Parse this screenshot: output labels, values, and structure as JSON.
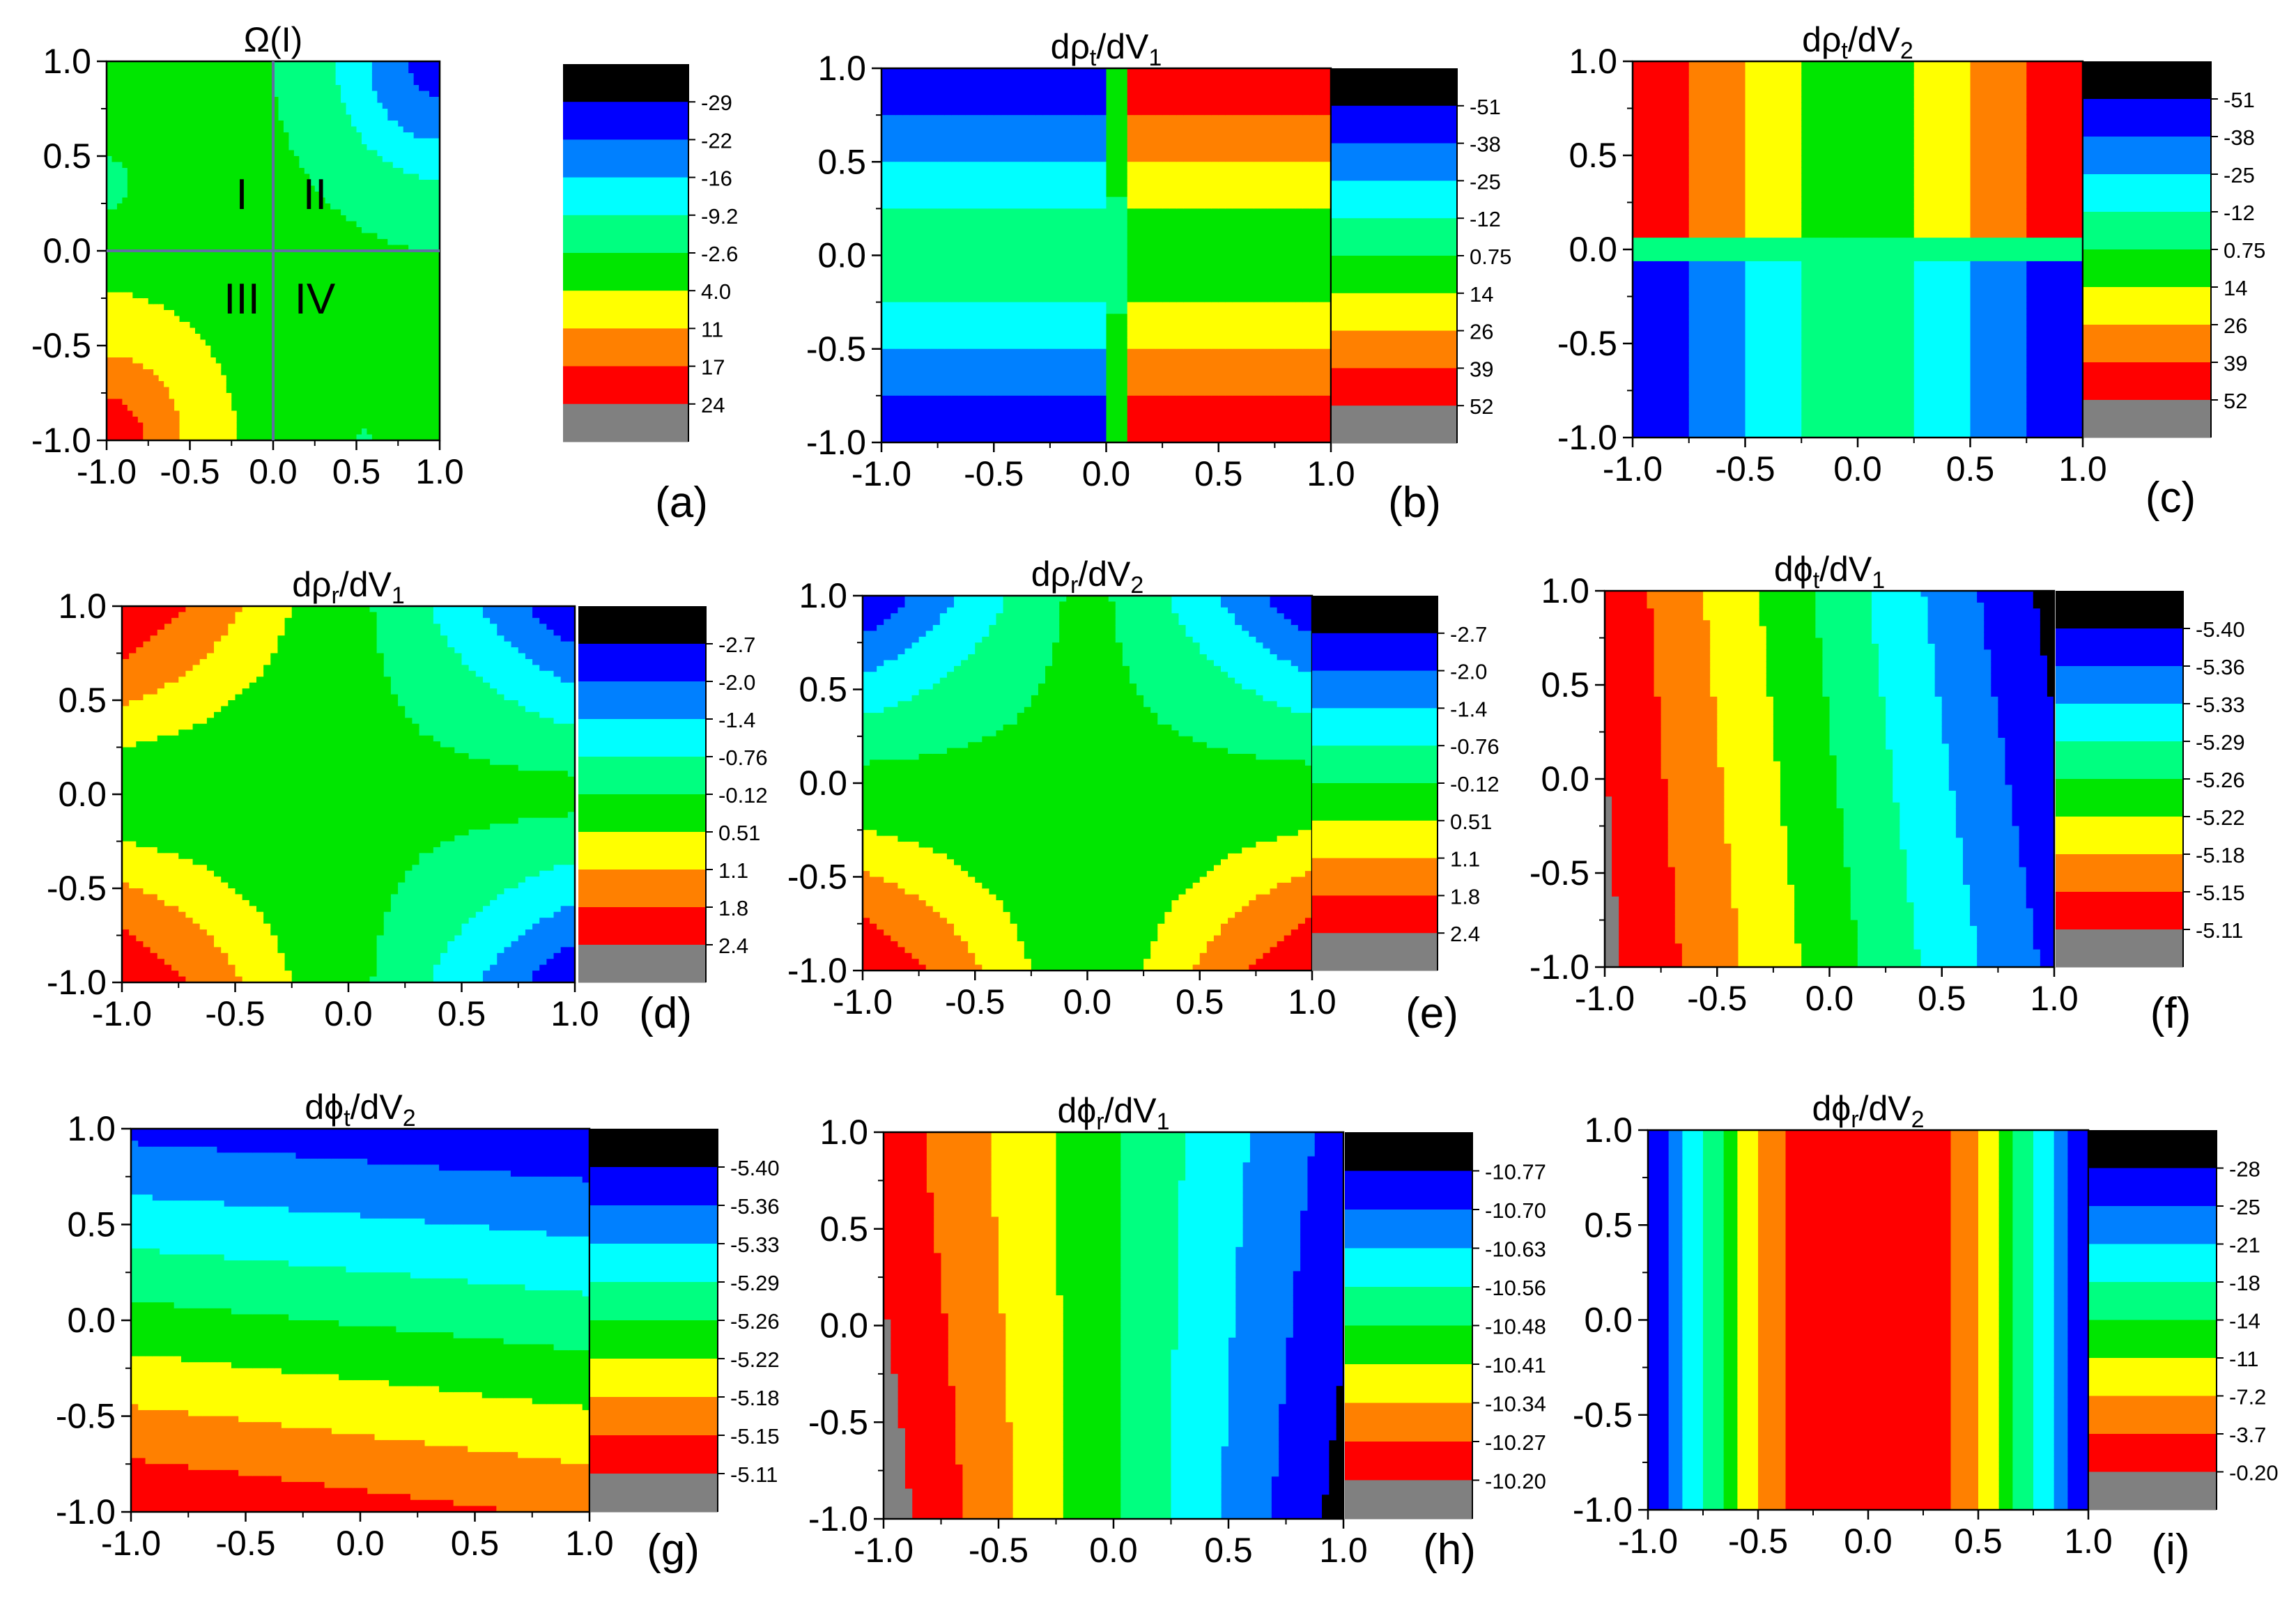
{
  "colors": [
    "#808080",
    "#ff0000",
    "#ff8000",
    "#ffff00",
    "#00e600",
    "#00ff80",
    "#00ffff",
    "#0080ff",
    "#0000ff",
    "#000000"
  ],
  "chart_data": [
    {
      "panel": "(a)",
      "type": "heatmap",
      "title": {
        "main": "Ω(I)",
        "sub": "",
        "main2": ""
      },
      "xlim": [
        -1,
        1
      ],
      "ylim": [
        -1,
        1
      ],
      "xticks": [
        "-1.0",
        "-0.5",
        "0.0",
        "0.5",
        "1.0"
      ],
      "yticks": [
        "-1.0",
        "-0.5",
        "0.0",
        "0.5",
        "1.0"
      ],
      "colorbar": [
        "-29",
        "-22",
        "-16",
        "-9.2",
        "-2.6",
        "4.0",
        "11",
        "17",
        "24"
      ],
      "field": "radial_corners",
      "quadrants": [
        "I",
        "II",
        "III",
        "IV"
      ]
    },
    {
      "panel": "(b)",
      "type": "heatmap",
      "title": {
        "main": "dρ",
        "sub": "t",
        "main2": "/dV",
        "sub2": "1"
      },
      "xlim": [
        -1,
        1
      ],
      "ylim": [
        -1,
        1
      ],
      "xticks": [
        "-1.0",
        "-0.5",
        "0.0",
        "0.5",
        "1.0"
      ],
      "yticks": [
        "-1.0",
        "-0.5",
        "0.0",
        "0.5",
        "1.0"
      ],
      "colorbar": [
        "-51",
        "-38",
        "-25",
        "-12",
        "0.75",
        "14",
        "26",
        "39",
        "52"
      ],
      "field": "sign_x_times_y"
    },
    {
      "panel": "(c)",
      "type": "heatmap",
      "title": {
        "main": "dρ",
        "sub": "t",
        "main2": "/dV",
        "sub2": "2"
      },
      "xlim": [
        -1,
        1
      ],
      "ylim": [
        -1,
        1
      ],
      "xticks": [
        "-1.0",
        "-0.5",
        "0.0",
        "0.5",
        "1.0"
      ],
      "yticks": [
        "-1.0",
        "-0.5",
        "0.0",
        "0.5",
        "1.0"
      ],
      "colorbar": [
        "-51",
        "-38",
        "-25",
        "-12",
        "0.75",
        "14",
        "26",
        "39",
        "52"
      ],
      "field": "abs_x_times_sign_y"
    },
    {
      "panel": "(d)",
      "type": "heatmap",
      "title": {
        "main": "dρ",
        "sub": "r",
        "main2": "/dV",
        "sub2": "1"
      },
      "xlim": [
        -1,
        1
      ],
      "ylim": [
        -1,
        1
      ],
      "xticks": [
        "-1.0",
        "-0.5",
        "0.0",
        "0.5",
        "1.0"
      ],
      "yticks": [
        "-1.0",
        "-0.5",
        "0.0",
        "0.5",
        "1.0"
      ],
      "colorbar": [
        "-2.7",
        "-2.0",
        "-1.4",
        "-0.76",
        "-0.12",
        "0.51",
        "1.1",
        "1.8",
        "2.4"
      ],
      "field": "saddle_left_hot"
    },
    {
      "panel": "(e)",
      "type": "heatmap",
      "title": {
        "main": "dρ",
        "sub": "r",
        "main2": "/dV",
        "sub2": "2"
      },
      "xlim": [
        -1,
        1
      ],
      "ylim": [
        -1,
        1
      ],
      "xticks": [
        "-1.0",
        "-0.5",
        "0.0",
        "0.5",
        "1.0"
      ],
      "yticks": [
        "-1.0",
        "-0.5",
        "0.0",
        "0.5",
        "1.0"
      ],
      "colorbar": [
        "-2.7",
        "-2.0",
        "-1.4",
        "-0.76",
        "-0.12",
        "0.51",
        "1.1",
        "1.8",
        "2.4"
      ],
      "field": "saddle_bottom_hot"
    },
    {
      "panel": "(f)",
      "type": "heatmap",
      "title": {
        "main": "dϕ",
        "sub": "t",
        "main2": "/dV",
        "sub2": "1"
      },
      "xlim": [
        -1,
        1
      ],
      "ylim": [
        -1,
        1
      ],
      "xticks": [
        "-1.0",
        "-0.5",
        "0.0",
        "0.5",
        "1.0"
      ],
      "yticks": [
        "-1.0",
        "-0.5",
        "0.0",
        "0.5",
        "1.0"
      ],
      "colorbar": [
        "-5.40",
        "-5.36",
        "-5.33",
        "-5.29",
        "-5.26",
        "-5.22",
        "-5.18",
        "-5.15",
        "-5.11"
      ],
      "field": "vertical_bands_curved"
    },
    {
      "panel": "(g)",
      "type": "heatmap",
      "title": {
        "main": "dϕ",
        "sub": "t",
        "main2": "/dV",
        "sub2": "2"
      },
      "xlim": [
        -1,
        1
      ],
      "ylim": [
        -1,
        1
      ],
      "xticks": [
        "-1.0",
        "-0.5",
        "0.0",
        "0.5",
        "1.0"
      ],
      "yticks": [
        "-1.0",
        "-0.5",
        "0.0",
        "0.5",
        "1.0"
      ],
      "colorbar": [
        "-5.40",
        "-5.36",
        "-5.33",
        "-5.29",
        "-5.26",
        "-5.22",
        "-5.18",
        "-5.15",
        "-5.11"
      ],
      "field": "horizontal_bands_curved"
    },
    {
      "panel": "(h)",
      "type": "heatmap",
      "title": {
        "main": "dϕ",
        "sub": "r",
        "main2": "/dV",
        "sub2": "1"
      },
      "xlim": [
        -1,
        1
      ],
      "ylim": [
        -1,
        1
      ],
      "xticks": [
        "-1.0",
        "-0.5",
        "0.0",
        "0.5",
        "1.0"
      ],
      "yticks": [
        "-1.0",
        "-0.5",
        "0.0",
        "0.5",
        "1.0"
      ],
      "colorbar": [
        "-10.77",
        "-10.70",
        "-10.63",
        "-10.56",
        "-10.48",
        "-10.41",
        "-10.34",
        "-10.27",
        "-10.20"
      ],
      "field": "vertical_bands_fan"
    },
    {
      "panel": "(i)",
      "type": "heatmap",
      "title": {
        "main": "dϕ",
        "sub": "r",
        "main2": "/dV",
        "sub2": "2"
      },
      "xlim": [
        -1,
        1
      ],
      "ylim": [
        -1,
        1
      ],
      "xticks": [
        "-1.0",
        "-0.5",
        "0.0",
        "0.5",
        "1.0"
      ],
      "yticks": [
        "-1.0",
        "-0.5",
        "0.0",
        "0.5",
        "1.0"
      ],
      "colorbar": [
        "-28",
        "-25",
        "-21",
        "-18",
        "-14",
        "-11",
        "-7.2",
        "-3.7",
        "-0.20"
      ],
      "field": "symmetric_vertical_bands"
    }
  ]
}
